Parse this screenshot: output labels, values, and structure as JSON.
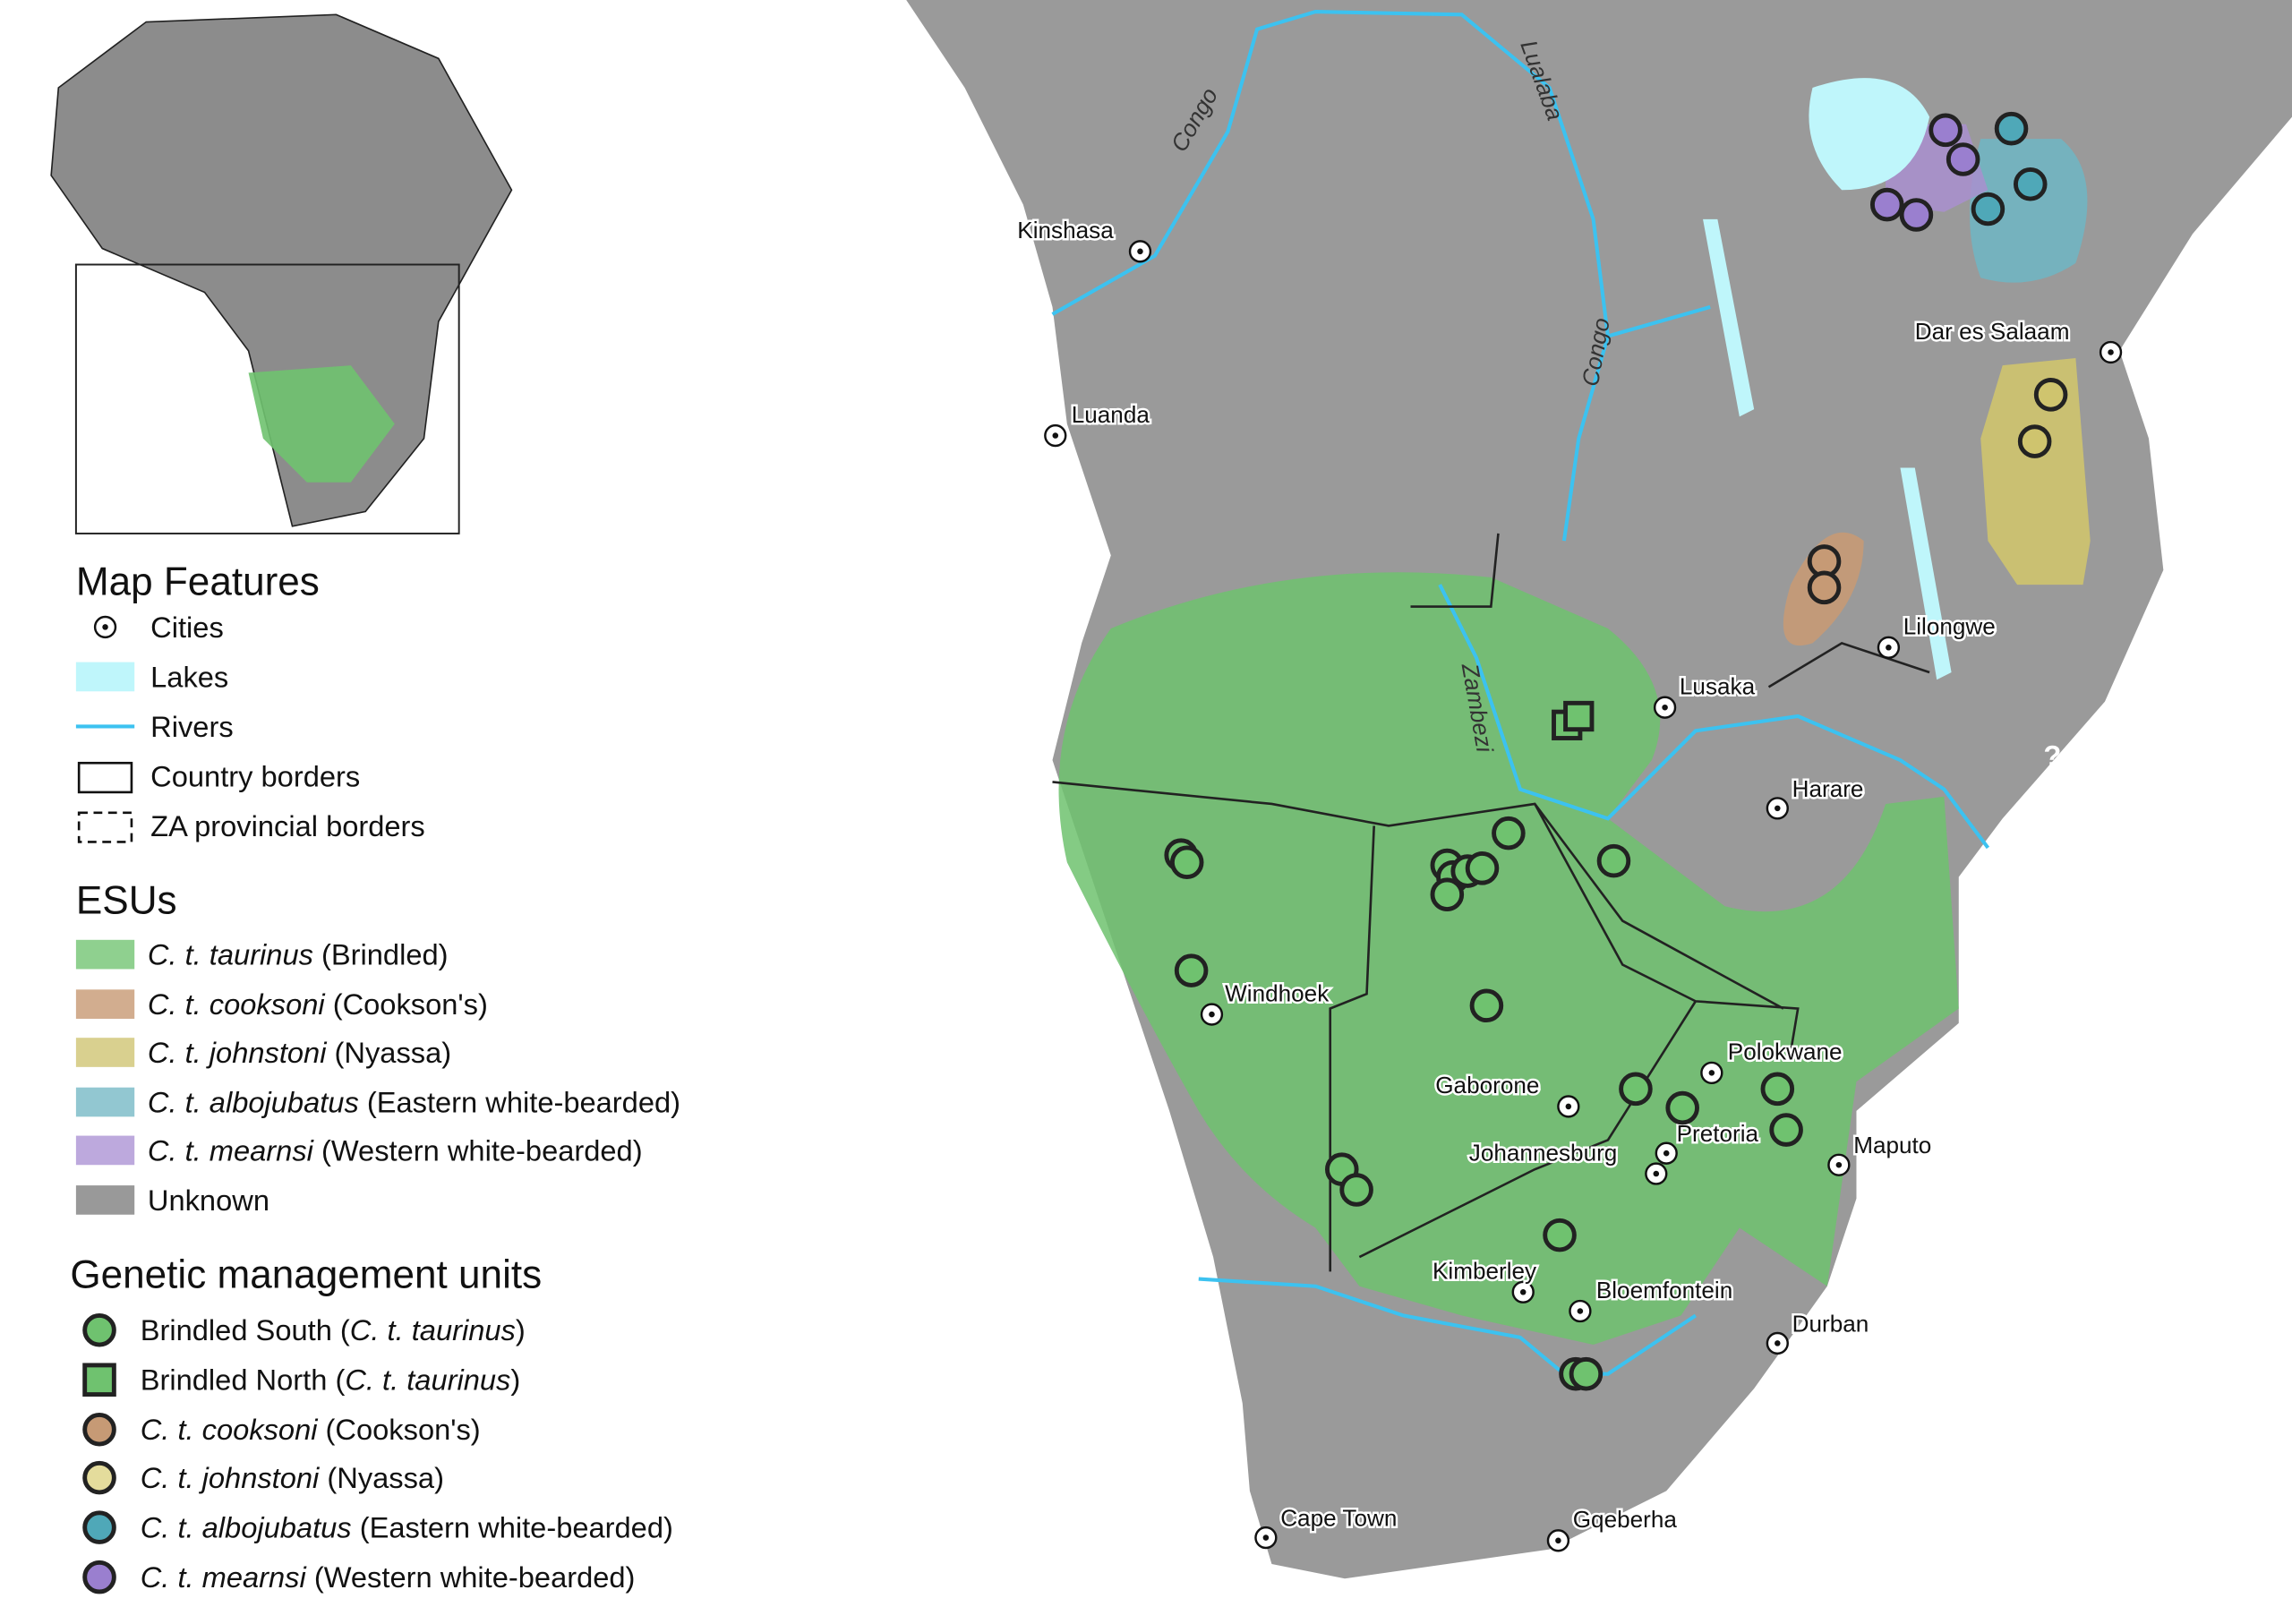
{
  "map_features": {
    "title": "Map Features",
    "items": [
      "Cities",
      "Lakes",
      "Rivers",
      "Country borders",
      "ZA provincial borders"
    ]
  },
  "esus": {
    "title": "ESUs",
    "items": [
      [
        {
          "t": "C. t. taurinus",
          "italic": true
        },
        {
          "t": " (Brindled)"
        }
      ],
      [
        {
          "t": "C. t. cooksoni",
          "italic": true
        },
        {
          "t": " (Cookson's)"
        }
      ],
      [
        {
          "t": "C. t. johnstoni",
          "italic": true
        },
        {
          "t": " (Nyassa)"
        }
      ],
      [
        {
          "t": "C. t. albojubatus",
          "italic": true
        },
        {
          "t": " (Eastern white-bearded)"
        }
      ],
      [
        {
          "t": "C. t. mearnsi",
          "italic": true
        },
        {
          "t": " (Western white-bearded)"
        }
      ],
      [
        {
          "t": "Unknown"
        }
      ]
    ]
  },
  "gmus": {
    "title": "Genetic management units",
    "items": [
      [
        {
          "t": "Brindled South ("
        },
        {
          "t": "C. t. taurinus",
          "italic": true
        },
        {
          "t": ")"
        }
      ],
      [
        {
          "t": "Brindled North ("
        },
        {
          "t": "C. t. taurinus",
          "italic": true
        },
        {
          "t": ")"
        }
      ],
      [
        {
          "t": "C. t. cooksoni",
          "italic": true
        },
        {
          "t": " (Cookson's)"
        }
      ],
      [
        {
          "t": "C. t. johnstoni",
          "italic": true
        },
        {
          "t": " (Nyassa)"
        }
      ],
      [
        {
          "t": "C. t. albojubatus",
          "italic": true
        },
        {
          "t": " (Eastern white-bearded)"
        }
      ],
      [
        {
          "t": "C. t. mearnsi",
          "italic": true
        },
        {
          "t": " (Western white-bearded)"
        }
      ]
    ]
  },
  "cities": [
    "Kinshasa",
    "Luanda",
    "Lusaka",
    "Lilongwe",
    "Harare",
    "Dar es Salaam",
    "Windhoek",
    "Gaborone",
    "Polokwane",
    "Pretoria",
    "Johannesburg",
    "Maputo",
    "Kimberley",
    "Bloemfontein",
    "Durban",
    "Cape Town",
    "Gqeberha"
  ],
  "rivers": [
    "Congo",
    "Lualaba",
    "Congo",
    "Zambezi"
  ],
  "unknown_marker": "?"
}
